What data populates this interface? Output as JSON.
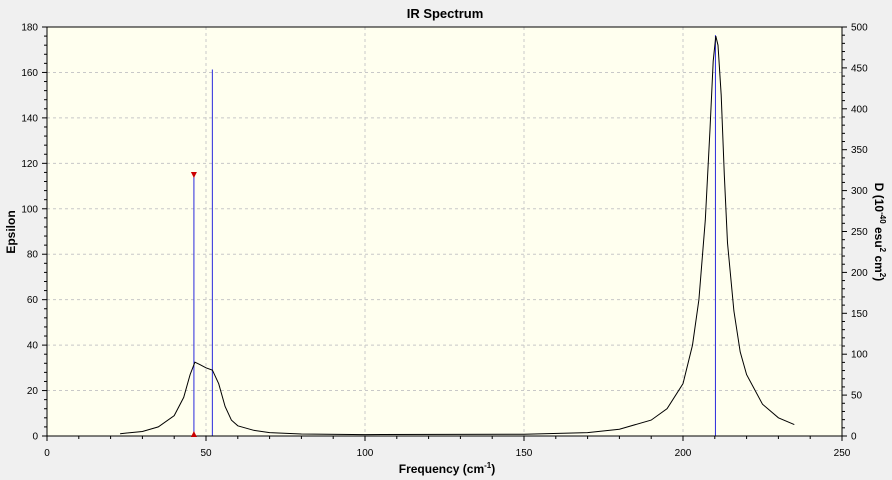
{
  "chart_data": {
    "type": "line",
    "title": "IR Spectrum",
    "xlabel": "Frequency (cm",
    "xlabel_sup": "-1",
    "xlabel_end": ")",
    "ylabel": "Epsilon",
    "y2label_parts": [
      "D (10",
      "-40",
      " esu",
      "2",
      " cm",
      "2",
      ")"
    ],
    "xlim": [
      0,
      250
    ],
    "ylim": [
      0,
      180
    ],
    "y2lim": [
      0,
      500
    ],
    "xticks": [
      0,
      50,
      100,
      150,
      200,
      250
    ],
    "yticks": [
      0,
      20,
      40,
      60,
      80,
      100,
      120,
      140,
      160,
      180
    ],
    "y2ticks": [
      0,
      50,
      100,
      150,
      200,
      250,
      300,
      350,
      400,
      450,
      500
    ],
    "grid": true,
    "legend": "none",
    "spectrum": {
      "name": "Epsilon",
      "x": [
        23,
        30,
        35,
        40,
        43,
        45,
        46.5,
        48,
        50,
        52,
        54,
        56,
        58,
        60,
        65,
        70,
        80,
        100,
        150,
        170,
        180,
        190,
        195,
        200,
        203,
        205,
        207,
        208.5,
        209.5,
        210.3,
        211,
        212,
        213,
        214,
        216,
        218,
        220,
        225,
        230,
        235
      ],
      "y": [
        1,
        2,
        4,
        9,
        17,
        27,
        32.5,
        31.5,
        30,
        29,
        23,
        13,
        7,
        4.5,
        2.5,
        1.5,
        0.9,
        0.6,
        0.8,
        1.5,
        3,
        7,
        12,
        23,
        40,
        60,
        95,
        135,
        165,
        176,
        172,
        150,
        115,
        85,
        55,
        37,
        27,
        14,
        8,
        5
      ],
      "color": "#000000"
    },
    "sticks": {
      "name": "D",
      "axis": "right",
      "x": [
        46.2,
        52,
        210.2
      ],
      "y": [
        319,
        448,
        490
      ],
      "color": "#2a2adc"
    },
    "marker": {
      "x": 46.2,
      "y": 319,
      "color": "#cc0000"
    },
    "background": "#ffffef",
    "grid_color": "#c8c8c8"
  }
}
